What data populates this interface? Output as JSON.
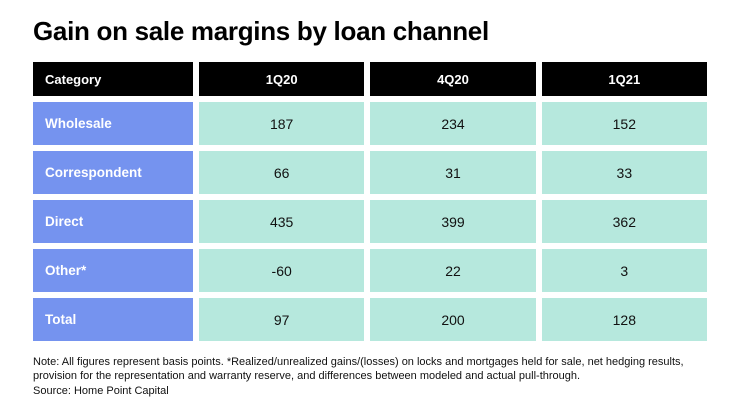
{
  "title": "Gain on sale margins by loan channel",
  "colors": {
    "header_bg": "#000000",
    "category_bg": "#7593ef",
    "value_bg": "#b6e8dd"
  },
  "chart_data": {
    "type": "table",
    "title": "Gain on sale margins by loan channel",
    "columns": [
      "Category",
      "1Q20",
      "4Q20",
      "1Q21"
    ],
    "rows": [
      {
        "category": "Wholesale",
        "values": [
          "187",
          "234",
          "152"
        ]
      },
      {
        "category": "Correspondent",
        "values": [
          "66",
          "31",
          "33"
        ]
      },
      {
        "category": "Direct",
        "values": [
          "435",
          "399",
          "362"
        ]
      },
      {
        "category": "Other*",
        "values": [
          "-60",
          "22",
          "3"
        ]
      },
      {
        "category": "Total",
        "values": [
          "97",
          "200",
          "128"
        ]
      }
    ],
    "units": "basis points",
    "note": "Note: All figures represent basis points. *Realized/unrealized gains/(losses) on locks and mortgages held for sale, net hedging results, provision for the representation and warranty reserve, and differences between modeled and actual pull-through.",
    "source": "Source: Home Point Capital"
  }
}
